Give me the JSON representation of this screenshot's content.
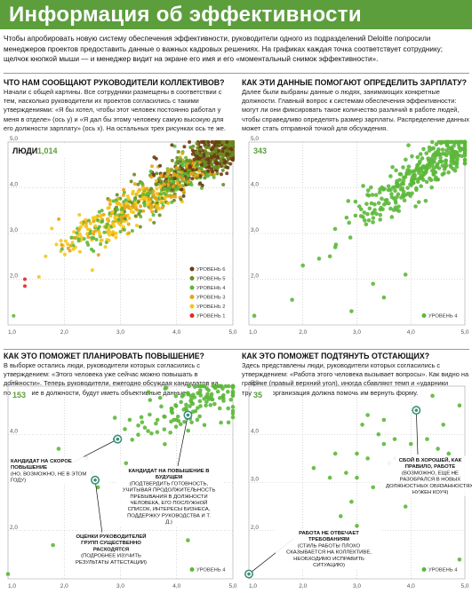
{
  "title": "Информация об эффективности",
  "intro": "Чтобы апробировать новую систему обеспечения эффективности, руководители одного из подразделений Deloitte попросили менеджеров проектов предоставить данные о важных кадровых решениях. На графиках каждая точка соответствует сотруднику; щелчок кнопкой мыши — и менеджер видит на экране его имя и его «моментальный снимок эффективности».",
  "colors": {
    "accent": "#5c9e3c",
    "level6": "#6b3c14",
    "level5": "#6a8d1e",
    "level4": "#5cb83a",
    "level3": "#e8a317",
    "level2": "#f5c518",
    "level1": "#e0281e",
    "callout_ring": "#3b8f7a"
  },
  "panels": [
    {
      "question": "ЧТО НАМ СООБЩАЮТ РУКОВОДИТЕЛИ КОЛЛЕКТИВОВ?",
      "text": "Начали с общей картины. Все сотрудники размещены в соответствии с тем, насколько руководители их проектов согласились с такими утверждениями: «Я бы хотел, чтобы этот человек постоянно работал у меня в отделе» (ось y) и «Я дал бы этому человеку самую высокую для его должности зарплату» (ось x). На остальных трех рисунках ось те же."
    },
    {
      "question": "КАК ЭТИ ДАННЫЕ ПОМОГАЮТ ОПРЕДЕЛИТЬ ЗАРПЛАТУ?",
      "text": "Далее были выбраны данные о людях, занимающих конкретные должности. Главный вопрос к системам обеспечения эффективности: могут ли они фиксировать такое количество различий в работе людей, чтобы справедливо определять размер зарплаты. Распределение данных может стать отправной точкой для обсуждения."
    },
    {
      "question": "КАК ЭТО ПОМОЖЕТ ПЛАНИРОВАТЬ ПОВЫШЕНИЕ?",
      "text": "В выборке остались люди, руководители которых согласились с утверждением: «Этого человека уже сейчас можно повышать в должности». Теперь руководители, ежегодно обсуждая кандидатов на повышение в должности, будут иметь объективные данные."
    },
    {
      "question": "КАК ЭТО ПОМОЖЕТ ПОДТЯНУТЬ ОТСТАЮЩИХ?",
      "text": "Здесь представлены люди, руководители которых согласились с утверждением: «Работа этого человека вызывает вопросы». Как видно на графике (правый верхний угол), иногда сбавляют темп и «ударники труда», и организация должна помочь им вернуть форму."
    }
  ],
  "chart_data": [
    {
      "type": "scatter",
      "count_label": "ЛЮДИ",
      "count": "1,014",
      "xlim": [
        1,
        5
      ],
      "ylim": [
        1,
        5
      ],
      "x_ticks": [
        "1,0",
        "2,0",
        "3,0",
        "4,0",
        "5,0"
      ],
      "y_ticks": [
        "2,0",
        "3,0",
        "4,0",
        "5,0"
      ],
      "legend": [
        "УРОВЕНЬ 6",
        "УРОВЕНЬ 5",
        "УРОВЕНЬ 4",
        "УРОВЕНЬ 3",
        "УРОВЕНЬ 2",
        "УРОВЕНЬ 1"
      ],
      "legend_placement": "bottom-right",
      "series_note": "approx. 1014 points concentrated along diagonal from (1.9,2.6) to (5,5); levels 6/5 near top-right, 3/2/1 near lower-left",
      "points": [
        [
          1.1,
          1.2
        ],
        [
          1.9,
          2.4
        ],
        [
          2.0,
          2.6
        ],
        [
          2.1,
          2.1
        ],
        [
          2.3,
          2.8
        ],
        [
          2.6,
          3.1
        ],
        [
          2.9,
          3.3
        ],
        [
          3.2,
          3.6
        ],
        [
          3.5,
          3.9
        ],
        [
          3.8,
          4.1
        ],
        [
          4.1,
          4.4
        ],
        [
          4.4,
          4.6
        ],
        [
          4.7,
          4.8
        ],
        [
          5.0,
          5.0
        ]
      ]
    },
    {
      "type": "scatter",
      "count": "343",
      "xlim": [
        1,
        5
      ],
      "ylim": [
        1,
        5
      ],
      "x_ticks": [
        "1,0",
        "2,0",
        "3,0",
        "4,0",
        "5,0"
      ],
      "y_ticks": [
        "2,0",
        "3,0",
        "4,0",
        "5,0"
      ],
      "legend": [
        "УРОВЕНЬ 4"
      ],
      "legend_placement": "bottom-right",
      "points": [
        [
          1.1,
          1.2
        ],
        [
          1.8,
          1.5
        ],
        [
          2.8,
          2.6
        ],
        [
          3.0,
          3.0
        ],
        [
          3.3,
          3.2
        ],
        [
          3.6,
          3.5
        ],
        [
          3.9,
          3.8
        ],
        [
          4.2,
          4.2
        ],
        [
          4.5,
          4.5
        ],
        [
          4.8,
          4.8
        ],
        [
          5.0,
          5.0
        ]
      ]
    },
    {
      "type": "scatter",
      "count": "153",
      "xlim": [
        1,
        5
      ],
      "ylim": [
        1,
        5
      ],
      "x_ticks": [
        "1,0",
        "2,0",
        "3,0",
        "4,0",
        "5,0"
      ],
      "y_ticks": [
        "2,0",
        "3,0",
        "4,0",
        "5,0"
      ],
      "legend": [
        "УРОВЕНЬ 4"
      ],
      "legend_placement": "bottom-right",
      "annotations": [
        {
          "text": "КАНДИДАТ НА СКОРОЕ ПОВЫШЕНИЕ",
          "sub": "(НО, ВОЗМОЖНО, НЕ В ЭТОМ ГОДУ)",
          "x": 2.95,
          "y": 3.9
        },
        {
          "text": "КАНДИДАТ НА ПОВЫШЕНИЕ В БУДУЩЕМ",
          "sub": "(ПОДТВЕРДИТЬ ГОТОВНОСТЬ, УЧИТЫВАЯ ПРОДОЛЖИТЕЛЬНОСТЬ ПРЕБЫВАНИЯ В ДОЛЖНОСТИ ЧЕЛОВЕКА, ЕГО ПОСЛУЖНОЙ СПИСОК, ИНТЕРЕСЫ БИЗНЕСА, ПОДДЕРЖКУ РУКОВОДСТВА И Т. Д.)",
          "x": 4.2,
          "y": 4.4
        },
        {
          "text": "ОЦЕНКИ РУКОВОДИТЕЛЕЙ ГРУПП СУЩЕСТВЕННО РАСХОДЯТСЯ",
          "sub": "(ПОДРОБНЕЕ ИЗУЧИТЬ РЕЗУЛЬТАТЫ АТТЕСТАЦИИ)",
          "x": 2.55,
          "y": 3.05
        }
      ],
      "points": [
        [
          1.0,
          1.1
        ],
        [
          1.9,
          3.7
        ],
        [
          2.4,
          3.5
        ],
        [
          2.6,
          2.9
        ],
        [
          2.9,
          3.9
        ],
        [
          3.3,
          4.6
        ],
        [
          3.7,
          4.4
        ],
        [
          4.0,
          4.8
        ],
        [
          4.3,
          4.3
        ],
        [
          4.6,
          4.7
        ],
        [
          5.0,
          5.0
        ]
      ]
    },
    {
      "type": "scatter",
      "count": "35",
      "xlim": [
        1,
        5
      ],
      "ylim": [
        1,
        5
      ],
      "x_ticks": [
        "1,0",
        "2,0",
        "3,0",
        "4,0",
        "5,0"
      ],
      "y_ticks": [
        "2,0",
        "3,0",
        "4,0",
        "5,0"
      ],
      "legend": [
        "УРОВЕНЬ 4"
      ],
      "legend_placement": "bottom-right",
      "annotations": [
        {
          "text": "СБОЙ В ХОРОШЕЙ, КАК ПРАВИЛО, РАБОТЕ",
          "sub": "(ВОЗМОЖНО, ЕЩЕ НЕ РАЗОБРАЛСЯ В НОВЫХ ДОЛЖНОСТНЫХ ОБЯЗАННОСТЯХ, НУЖЕН КОУЧ)",
          "x": 4.1,
          "y": 4.5
        },
        {
          "text": "РАБОТА НЕ ОТВЕЧАЕТ ТРЕБОВАНИЯМ",
          "sub": "(СТИЛЬ РАБОТЫ ПЛОХО СКАЗЫВАЕТСЯ НА КОЛЛЕКТИВЕ, НЕОБХОДИМО ИСПРАВИТЬ СИТУАЦИЮ)",
          "x": 1.0,
          "y": 1.1
        }
      ],
      "points": [
        [
          1.0,
          1.1
        ],
        [
          2.2,
          3.3
        ],
        [
          2.6,
          3.6
        ],
        [
          3.0,
          3.1
        ],
        [
          3.2,
          4.4
        ],
        [
          3.5,
          3.8
        ],
        [
          3.7,
          3.5
        ],
        [
          3.9,
          2.5
        ],
        [
          4.1,
          4.5
        ],
        [
          4.5,
          3.7
        ],
        [
          4.9,
          4.6
        ]
      ]
    }
  ]
}
